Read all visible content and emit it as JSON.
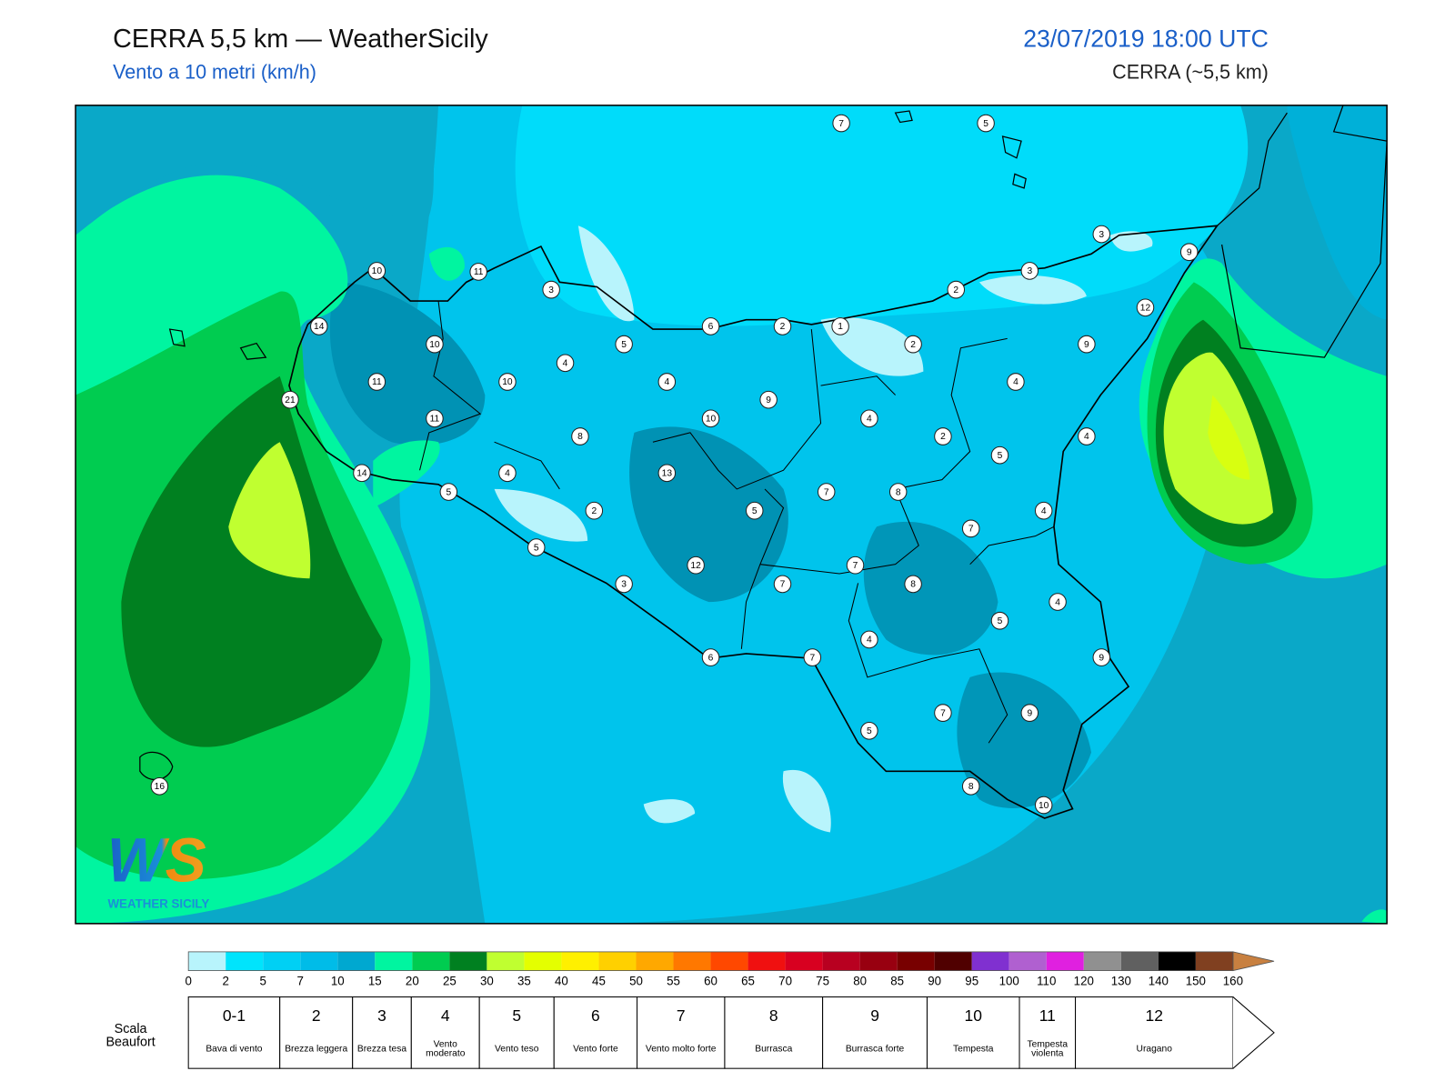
{
  "header": {
    "title": "CERRA 5,5 km — WeatherSicily",
    "subtitle": "Vento a 10 metri (km/h)",
    "datetime": "23/07/2019 18:00 UTC",
    "source": "CERRA (~5,5 km)"
  },
  "logo": {
    "mark": "WS",
    "text": "WEATHER SICILY"
  },
  "stations": [
    7,
    5,
    3,
    9,
    10,
    11,
    3,
    3,
    2,
    12,
    14,
    6,
    2,
    1,
    10,
    5,
    2,
    9,
    4,
    11,
    10,
    4,
    4,
    21,
    9,
    11,
    10,
    4,
    8,
    2,
    4,
    5,
    14,
    4,
    13,
    5,
    7,
    8,
    2,
    5,
    4,
    7,
    5,
    7,
    12,
    3,
    7,
    8,
    4,
    5,
    4,
    6,
    7,
    9,
    7,
    9,
    5,
    16,
    8,
    10
  ],
  "colorbar": {
    "ticks": [
      0,
      2,
      5,
      7,
      10,
      15,
      20,
      25,
      30,
      35,
      40,
      45,
      50,
      55,
      60,
      65,
      70,
      75,
      80,
      85,
      90,
      95,
      100,
      110,
      120,
      130,
      140,
      150,
      160
    ],
    "colors": [
      "#b8f4fc",
      "#00e4fc",
      "#00d0f4",
      "#00bce8",
      "#00a8d0",
      "#00f5a0",
      "#00cc50",
      "#008020",
      "#c0ff30",
      "#e4ff00",
      "#fff000",
      "#ffd000",
      "#ffa800",
      "#ff7800",
      "#ff4800",
      "#f01010",
      "#d80020",
      "#b80020",
      "#980010",
      "#780000",
      "#500000",
      "#8030d0",
      "#b060d0",
      "#e020e0",
      "#909090",
      "#606060",
      "#000000",
      "#804020"
    ],
    "over_color": "#c88040"
  },
  "beaufort": {
    "title": "Scala Beaufort",
    "entries": [
      {
        "force": "0-1",
        "label": "Bava di vento"
      },
      {
        "force": 2,
        "label": "Brezza leggera"
      },
      {
        "force": 3,
        "label": "Brezza tesa"
      },
      {
        "force": 4,
        "label": "Vento moderato"
      },
      {
        "force": 5,
        "label": "Vento teso"
      },
      {
        "force": 6,
        "label": "Vento forte"
      },
      {
        "force": 7,
        "label": "Vento molto forte"
      },
      {
        "force": 8,
        "label": "Burrasca"
      },
      {
        "force": 9,
        "label": "Burrasca forte"
      },
      {
        "force": 10,
        "label": "Tempesta"
      },
      {
        "force": 11,
        "label": "Tempesta violenta"
      },
      {
        "force": 12,
        "label": "Uragano"
      }
    ]
  }
}
